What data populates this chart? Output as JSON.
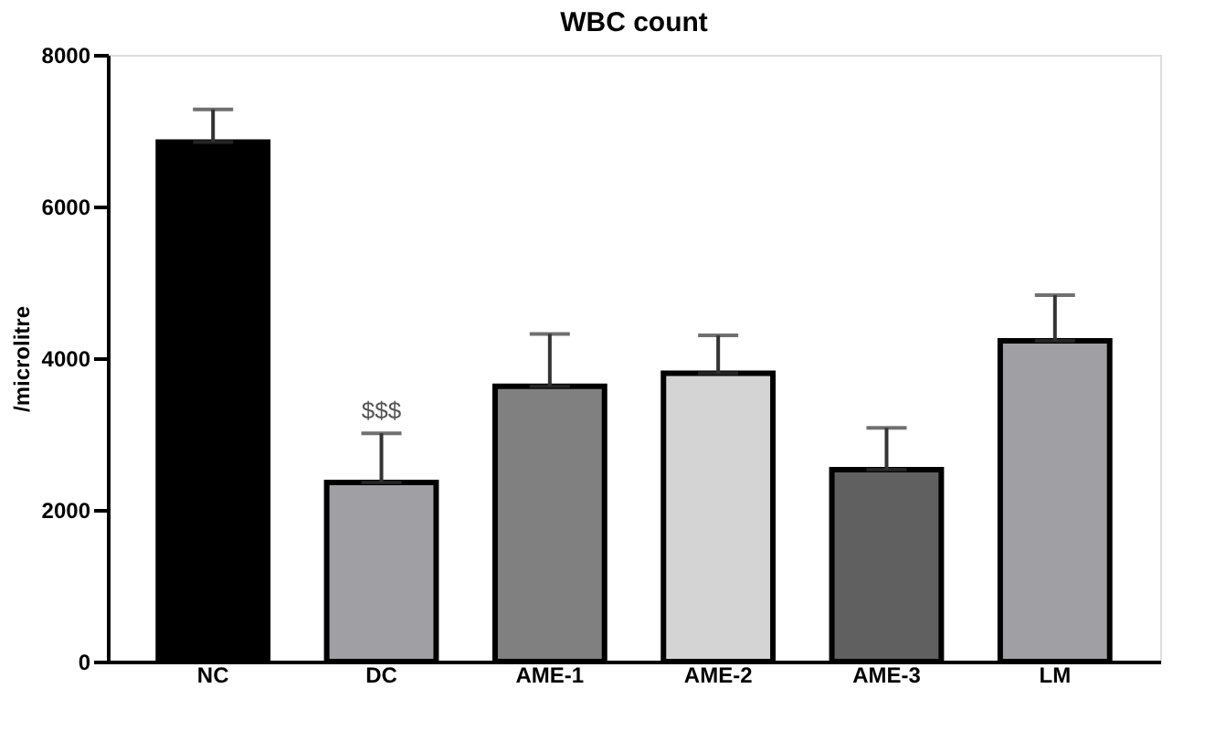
{
  "chart_data": {
    "type": "bar",
    "title": "WBC count",
    "ylabel": "/microlitre",
    "categories": [
      "NC",
      "DC",
      "AME-1",
      "AME-2",
      "AME-3",
      "LM"
    ],
    "values": [
      6850,
      2360,
      3630,
      3800,
      2530,
      4230
    ],
    "errors": [
      [
        6850,
        7280
      ],
      [
        2360,
        3010
      ],
      [
        3630,
        4320
      ],
      [
        3800,
        4300
      ],
      [
        2530,
        3080
      ],
      [
        4230,
        4830
      ]
    ],
    "colors": [
      "#000000",
      "#a0a0a4",
      "#808080",
      "#d4d4d4",
      "#606060",
      "#a0a0a4"
    ],
    "ylim": [
      0,
      8000
    ],
    "yticks": [
      0,
      2000,
      4000,
      6000,
      8000
    ],
    "grid": false,
    "annotations": [
      {
        "text": "$$$",
        "x": "DC",
        "y": 3010
      }
    ]
  }
}
